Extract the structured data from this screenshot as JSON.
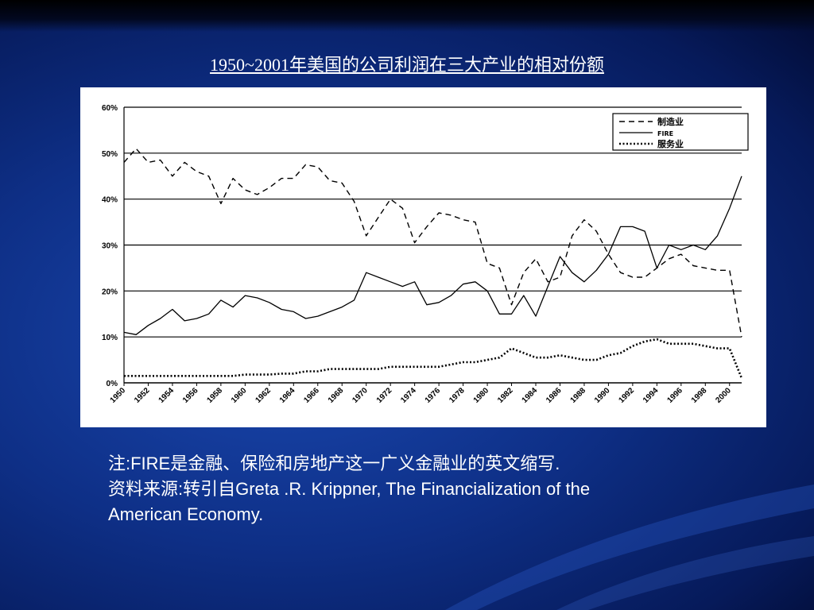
{
  "slide": {
    "title": "1950~2001年美国的公司利润在三大产业的相对份额",
    "note_line1": "注:FIRE是金融、保险和房地产这一广义金融业的英文缩写.",
    "note_line2": "资料来源:转引自Greta .R. Krippner, The Financialization of the",
    "note_line3": "American Economy."
  },
  "chart_data": {
    "type": "line",
    "title": "",
    "xlabel": "",
    "ylabel": "",
    "xlim": [
      1950,
      2001
    ],
    "ylim": [
      0,
      60
    ],
    "yticks": [
      "0%",
      "10%",
      "20%",
      "30%",
      "40%",
      "50%",
      "60%"
    ],
    "xticks": [
      "1950",
      "1952",
      "1954",
      "1956",
      "1958",
      "1960",
      "1962",
      "1964",
      "1966",
      "1968",
      "1970",
      "1972",
      "1974",
      "1976",
      "1978",
      "1980",
      "1982",
      "1984",
      "1986",
      "1988",
      "1990",
      "1992",
      "1994",
      "1996",
      "1998",
      "2000"
    ],
    "grid": "horizontal",
    "legend_position": "top-right",
    "x": [
      1950,
      1951,
      1952,
      1953,
      1954,
      1955,
      1956,
      1957,
      1958,
      1959,
      1960,
      1961,
      1962,
      1963,
      1964,
      1965,
      1966,
      1967,
      1968,
      1969,
      1970,
      1971,
      1972,
      1973,
      1974,
      1975,
      1976,
      1977,
      1978,
      1979,
      1980,
      1981,
      1982,
      1983,
      1984,
      1985,
      1986,
      1987,
      1988,
      1989,
      1990,
      1991,
      1992,
      1993,
      1994,
      1995,
      1996,
      1997,
      1998,
      1999,
      2000,
      2001
    ],
    "series": [
      {
        "name": "制造业",
        "style": "dashed",
        "color": "#000000",
        "values": [
          48,
          51,
          48,
          48.5,
          45,
          48,
          46,
          45,
          39,
          44.5,
          42,
          41,
          42.5,
          44.5,
          44.5,
          47.5,
          47,
          44,
          43.5,
          39.5,
          32,
          36,
          40,
          38,
          30.5,
          34,
          37,
          36.5,
          35.5,
          35,
          26,
          25,
          17,
          24,
          27,
          22,
          23,
          32,
          35.5,
          33,
          28,
          24,
          23,
          23,
          25,
          27,
          28,
          25.5,
          25,
          24.5,
          24.5,
          10
        ]
      },
      {
        "name": "FIRE",
        "style": "solid",
        "color": "#000000",
        "values": [
          11,
          10.5,
          12.5,
          14,
          16,
          13.5,
          14,
          15,
          18,
          16.5,
          19,
          18.5,
          17.5,
          16,
          15.5,
          14,
          14.5,
          15.5,
          16.5,
          18,
          24,
          23,
          22,
          21,
          22,
          17,
          17.5,
          19,
          21.5,
          22,
          20,
          15,
          15,
          19,
          14.5,
          21,
          27.5,
          24,
          22,
          24.5,
          28,
          34,
          34,
          33,
          25,
          30,
          29,
          30,
          29,
          32,
          38,
          45
        ]
      },
      {
        "name": "服务业",
        "style": "dotted",
        "color": "#000000",
        "values": [
          1.5,
          1.5,
          1.5,
          1.5,
          1.5,
          1.5,
          1.5,
          1.5,
          1.5,
          1.5,
          1.8,
          1.8,
          1.8,
          2,
          2,
          2.5,
          2.5,
          3,
          3,
          3,
          3,
          3,
          3.5,
          3.5,
          3.5,
          3.5,
          3.5,
          4,
          4.5,
          4.5,
          5,
          5.5,
          7.5,
          6.5,
          5.5,
          5.5,
          6,
          5.5,
          5,
          5,
          6,
          6.5,
          8,
          9,
          9.5,
          8.5,
          8.5,
          8.5,
          8,
          7.5,
          7.5,
          1
        ]
      }
    ]
  }
}
